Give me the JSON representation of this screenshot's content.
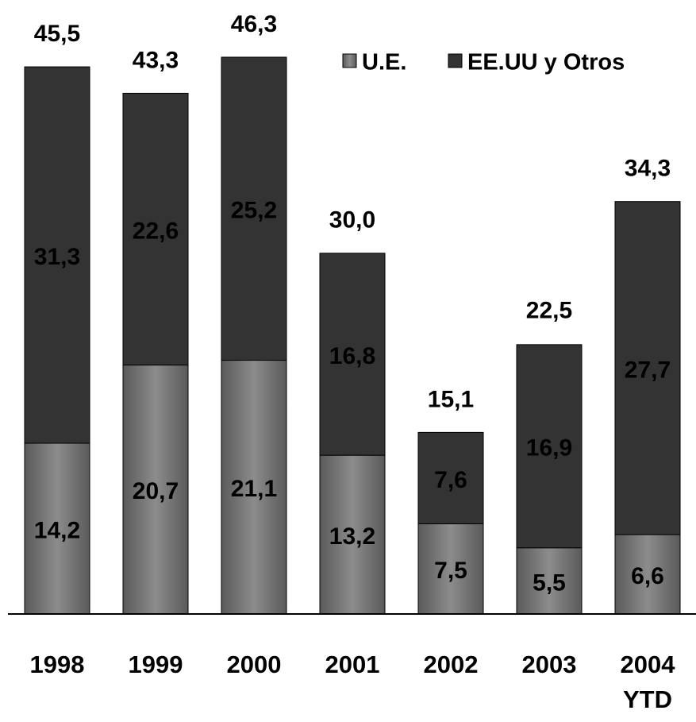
{
  "chart_data": {
    "type": "stacked_bar",
    "categories": [
      "1998",
      "1999",
      "2000",
      "2001",
      "2002",
      "2003",
      "2004 YTD"
    ],
    "series": [
      {
        "name": "U.E.",
        "color": "#7f7f7f",
        "values": [
          14.2,
          20.7,
          21.1,
          13.2,
          7.5,
          5.5,
          6.6
        ],
        "value_labels": [
          "14,2",
          "20,7",
          "21,1",
          "13,2",
          "7,5",
          "5,5",
          "6,6"
        ]
      },
      {
        "name": "EE.UU y Otros",
        "color": "#333333",
        "values": [
          31.3,
          22.6,
          25.2,
          16.8,
          7.6,
          16.9,
          27.7
        ],
        "value_labels": [
          "31,3",
          "22,6",
          "25,2",
          "16,8",
          "7,6",
          "16,9",
          "27,7"
        ]
      }
    ],
    "totals": {
      "values": [
        45.5,
        43.3,
        46.3,
        30.0,
        15.1,
        22.5,
        34.3
      ],
      "value_labels": [
        "45,5",
        "43,3",
        "46,3",
        "30,0",
        "15,1",
        "22,5",
        "34,3"
      ]
    },
    "legend": "upper right"
  }
}
